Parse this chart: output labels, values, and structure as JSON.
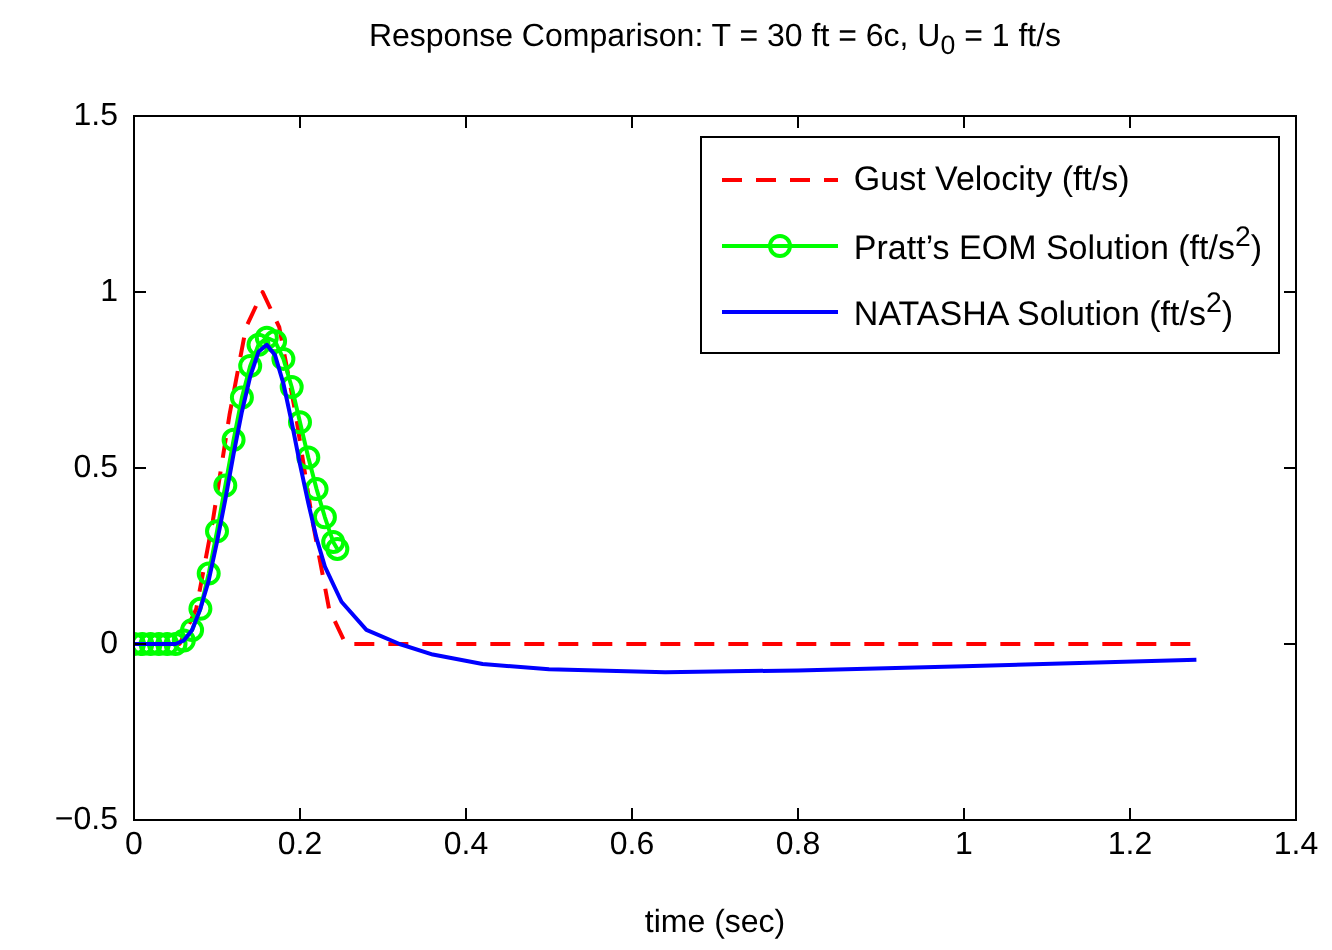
{
  "chart_data": {
    "type": "line",
    "title": "Response Comparison: T = 30 ft = 6c, U$_{0}$ = 1 ft/s",
    "xlabel": "time (sec)",
    "xlim": [
      0,
      1.4
    ],
    "xticks": [
      0,
      0.2,
      0.4,
      0.6,
      0.8,
      1,
      1.2,
      1.4
    ],
    "ylim": [
      -0.5,
      1.5
    ],
    "yticks": [
      -0.5,
      0,
      0.5,
      1,
      1.5
    ],
    "grid": false,
    "legend": "top right",
    "series": [
      {
        "name": "Gust Velocity (ft/s)",
        "color": "#ff0000",
        "line_style": "dashed",
        "marker": "none",
        "x": [
          0,
          0.055,
          0.075,
          0.095,
          0.105,
          0.115,
          0.135,
          0.155,
          0.175,
          0.195,
          0.205,
          0.215,
          0.235,
          0.255,
          1.28
        ],
        "values": [
          0,
          0,
          0.1,
          0.35,
          0.5,
          0.65,
          0.9,
          1,
          0.9,
          0.65,
          0.5,
          0.35,
          0.1,
          0,
          0
        ]
      },
      {
        "name": "Pratt’s EOM Solution (ft/s$^{2}$)",
        "color": "#00ff00",
        "line_style": "solid",
        "marker": "circle",
        "x": [
          0,
          0.01,
          0.02,
          0.03,
          0.04,
          0.05,
          0.06,
          0.07,
          0.08,
          0.09,
          0.1,
          0.11,
          0.12,
          0.13,
          0.14,
          0.15,
          0.16,
          0.17,
          0.18,
          0.19,
          0.2,
          0.21,
          0.22,
          0.23,
          0.24,
          0.245
        ],
        "values": [
          0,
          0,
          0,
          0,
          0,
          0,
          0.01,
          0.04,
          0.1,
          0.2,
          0.32,
          0.45,
          0.58,
          0.7,
          0.79,
          0.85,
          0.87,
          0.86,
          0.81,
          0.73,
          0.63,
          0.53,
          0.44,
          0.36,
          0.29,
          0.27
        ]
      },
      {
        "name": "NATASHA Solution (ft/s$^{2}$)",
        "color": "#0000ff",
        "line_style": "solid",
        "marker": "none",
        "x": [
          0,
          0.05,
          0.06,
          0.07,
          0.08,
          0.09,
          0.1,
          0.11,
          0.12,
          0.13,
          0.14,
          0.15,
          0.16,
          0.17,
          0.18,
          0.19,
          0.2,
          0.21,
          0.22,
          0.23,
          0.25,
          0.28,
          0.32,
          0.36,
          0.42,
          0.5,
          0.64,
          0.8,
          1,
          1.15,
          1.28
        ],
        "values": [
          0,
          0,
          0.01,
          0.04,
          0.1,
          0.18,
          0.29,
          0.41,
          0.54,
          0.66,
          0.76,
          0.83,
          0.85,
          0.82,
          0.74,
          0.63,
          0.51,
          0.4,
          0.3,
          0.22,
          0.12,
          0.04,
          0,
          -0.03,
          -0.057,
          -0.072,
          -0.08,
          -0.075,
          -0.063,
          -0.053,
          -0.045
        ]
      }
    ]
  }
}
